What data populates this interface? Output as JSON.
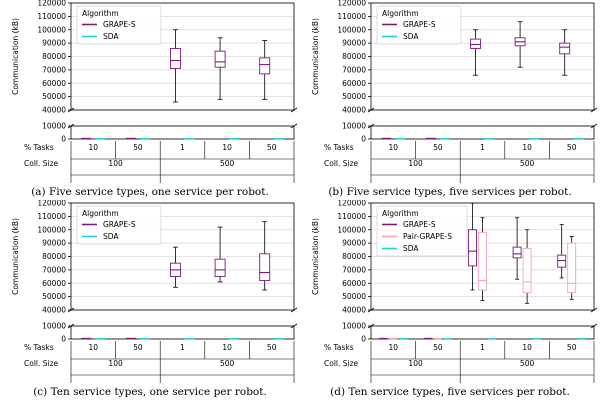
{
  "colors": {
    "grape_s": "#7a1a7a",
    "sda": "#1fd1d6",
    "pair_grape_s": "#f2a7b1",
    "grid": "#d8d8d8",
    "axis": "#000000",
    "text": "#000000"
  },
  "common": {
    "ylabel": "Communication (kB)",
    "row_label_tasks": "% Tasks",
    "row_label_coll": "Coll. Size",
    "legend_title": "Algorithm",
    "tasks_labels": [
      "10",
      "50",
      "1",
      "10",
      "50"
    ],
    "coll_labels": [
      "100",
      "500"
    ],
    "coll_groups": [
      [
        0,
        1
      ],
      [
        2,
        3,
        4
      ]
    ],
    "upper_ylim": [
      40000,
      120000
    ],
    "upper_ticks": [
      40000,
      50000,
      60000,
      70000,
      80000,
      90000,
      100000,
      110000,
      120000
    ],
    "lower_ylim": [
      0,
      10000
    ],
    "lower_ticks": [
      0,
      10000
    ]
  },
  "chart_data": [
    {
      "type": "box",
      "caption": "(a) Five service types, one service per robot.",
      "legend": [
        "GRAPE-S",
        "SDA"
      ],
      "series": [
        {
          "name": "GRAPE-S",
          "boxes": [
            {
              "whislo": 300,
              "q1": 300,
              "med": 300,
              "q3": 300,
              "whishi": 300
            },
            {
              "whislo": 300,
              "q1": 300,
              "med": 300,
              "q3": 300,
              "whishi": 300
            },
            {
              "whislo": 46000,
              "q1": 71000,
              "med": 77000,
              "q3": 86000,
              "whishi": 100000
            },
            {
              "whislo": 48000,
              "q1": 72000,
              "med": 76000,
              "q3": 84000,
              "whishi": 94000
            },
            {
              "whislo": 48000,
              "q1": 67000,
              "med": 74000,
              "q3": 79000,
              "whishi": 92000
            }
          ]
        },
        {
          "name": "SDA",
          "boxes": [
            {
              "whislo": 150,
              "q1": 150,
              "med": 150,
              "q3": 150,
              "whishi": 150
            },
            {
              "whislo": 150,
              "q1": 150,
              "med": 150,
              "q3": 150,
              "whishi": 150
            },
            {
              "whislo": 150,
              "q1": 150,
              "med": 150,
              "q3": 150,
              "whishi": 150
            },
            {
              "whislo": 150,
              "q1": 150,
              "med": 150,
              "q3": 150,
              "whishi": 150
            },
            {
              "whislo": 150,
              "q1": 150,
              "med": 150,
              "q3": 150,
              "whishi": 150
            }
          ]
        }
      ]
    },
    {
      "type": "box",
      "caption": "(b) Five service types, five services per robot.",
      "legend": [
        "GRAPE-S",
        "SDA"
      ],
      "series": [
        {
          "name": "GRAPE-S",
          "boxes": [
            {
              "whislo": 300,
              "q1": 300,
              "med": 300,
              "q3": 300,
              "whishi": 300
            },
            {
              "whislo": 300,
              "q1": 300,
              "med": 300,
              "q3": 300,
              "whishi": 300
            },
            {
              "whislo": 66000,
              "q1": 86000,
              "med": 89000,
              "q3": 93000,
              "whishi": 100000
            },
            {
              "whislo": 72000,
              "q1": 88000,
              "med": 91000,
              "q3": 94000,
              "whishi": 106000
            },
            {
              "whislo": 66000,
              "q1": 82000,
              "med": 87000,
              "q3": 90000,
              "whishi": 100000
            }
          ]
        },
        {
          "name": "SDA",
          "boxes": [
            {
              "whislo": 150,
              "q1": 150,
              "med": 150,
              "q3": 150,
              "whishi": 150
            },
            {
              "whislo": 150,
              "q1": 150,
              "med": 150,
              "q3": 150,
              "whishi": 150
            },
            {
              "whislo": 150,
              "q1": 150,
              "med": 150,
              "q3": 150,
              "whishi": 150
            },
            {
              "whislo": 150,
              "q1": 150,
              "med": 150,
              "q3": 150,
              "whishi": 150
            },
            {
              "whislo": 150,
              "q1": 150,
              "med": 150,
              "q3": 150,
              "whishi": 150
            }
          ]
        }
      ]
    },
    {
      "type": "box",
      "caption": "(c) Ten service types, one service per robot.",
      "legend": [
        "GRAPE-S",
        "SDA"
      ],
      "series": [
        {
          "name": "GRAPE-S",
          "boxes": [
            {
              "whislo": 300,
              "q1": 300,
              "med": 300,
              "q3": 300,
              "whishi": 300
            },
            {
              "whislo": 300,
              "q1": 300,
              "med": 300,
              "q3": 300,
              "whishi": 300
            },
            {
              "whislo": 57000,
              "q1": 65000,
              "med": 70000,
              "q3": 75000,
              "whishi": 87000
            },
            {
              "whislo": 61000,
              "q1": 65000,
              "med": 70000,
              "q3": 78000,
              "whishi": 102000
            },
            {
              "whislo": 55000,
              "q1": 62000,
              "med": 68000,
              "q3": 82000,
              "whishi": 106000
            }
          ]
        },
        {
          "name": "SDA",
          "boxes": [
            {
              "whislo": 150,
              "q1": 150,
              "med": 150,
              "q3": 150,
              "whishi": 150
            },
            {
              "whislo": 150,
              "q1": 150,
              "med": 150,
              "q3": 150,
              "whishi": 150
            },
            {
              "whislo": 150,
              "q1": 150,
              "med": 150,
              "q3": 150,
              "whishi": 150
            },
            {
              "whislo": 150,
              "q1": 150,
              "med": 150,
              "q3": 150,
              "whishi": 150
            },
            {
              "whislo": 150,
              "q1": 150,
              "med": 150,
              "q3": 150,
              "whishi": 150
            }
          ]
        }
      ]
    },
    {
      "type": "box",
      "caption": "(d) Ten service types, five services per robot.",
      "legend": [
        "GRAPE-S",
        "Pair-GRAPE-S",
        "SDA"
      ],
      "series": [
        {
          "name": "GRAPE-S",
          "boxes": [
            {
              "whislo": 300,
              "q1": 300,
              "med": 300,
              "q3": 300,
              "whishi": 300
            },
            {
              "whislo": 300,
              "q1": 300,
              "med": 300,
              "q3": 300,
              "whishi": 300
            },
            {
              "whislo": 55000,
              "q1": 73000,
              "med": 84000,
              "q3": 100000,
              "whishi": 120000
            },
            {
              "whislo": 63000,
              "q1": 79000,
              "med": 82000,
              "q3": 87000,
              "whishi": 109000
            },
            {
              "whislo": 64000,
              "q1": 72000,
              "med": 77000,
              "q3": 81000,
              "whishi": 104000
            }
          ]
        },
        {
          "name": "Pair-GRAPE-S",
          "boxes": [
            {
              "whislo": 300,
              "q1": 300,
              "med": 300,
              "q3": 300,
              "whishi": 300
            },
            {
              "whislo": 300,
              "q1": 300,
              "med": 300,
              "q3": 300,
              "whishi": 300
            },
            {
              "whislo": 47000,
              "q1": 55000,
              "med": 62000,
              "q3": 98000,
              "whishi": 109000
            },
            {
              "whislo": 45000,
              "q1": 53000,
              "med": 61000,
              "q3": 86000,
              "whishi": 100000
            },
            {
              "whislo": 48000,
              "q1": 53000,
              "med": 60000,
              "q3": 90000,
              "whishi": 95000
            }
          ]
        },
        {
          "name": "SDA",
          "boxes": [
            {
              "whislo": 150,
              "q1": 150,
              "med": 150,
              "q3": 150,
              "whishi": 150
            },
            {
              "whislo": 150,
              "q1": 150,
              "med": 150,
              "q3": 150,
              "whishi": 150
            },
            {
              "whislo": 150,
              "q1": 150,
              "med": 150,
              "q3": 150,
              "whishi": 150
            },
            {
              "whislo": 150,
              "q1": 150,
              "med": 150,
              "q3": 150,
              "whishi": 150
            },
            {
              "whislo": 150,
              "q1": 150,
              "med": 150,
              "q3": 150,
              "whishi": 150
            }
          ]
        }
      ]
    }
  ]
}
